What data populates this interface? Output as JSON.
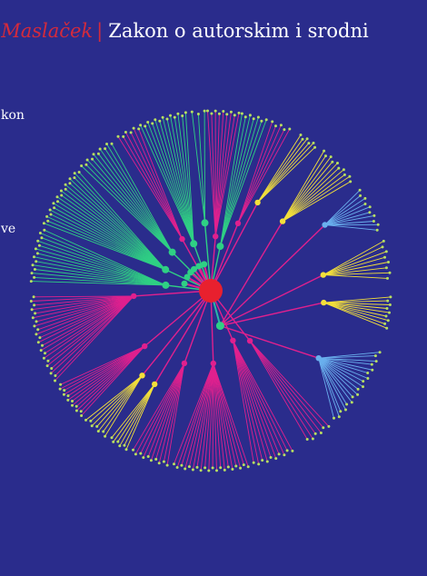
{
  "header": {
    "author": "a Maslaček",
    "separator": "|",
    "title": "Zakon o autorskim i srodni"
  },
  "side_words": [
    "kon",
    "ve"
  ],
  "colors": {
    "background": "#2a2c8c",
    "author_red": "#d42a3c",
    "root": "#e8202e",
    "green": "#2fd084",
    "magenta": "#e0208e",
    "yellow": "#f4e03a",
    "light_blue": "#6ab0ee",
    "teal": "#2ab8a8",
    "leaf": "#b8e060"
  },
  "graphic": "radial-tree-illustration"
}
